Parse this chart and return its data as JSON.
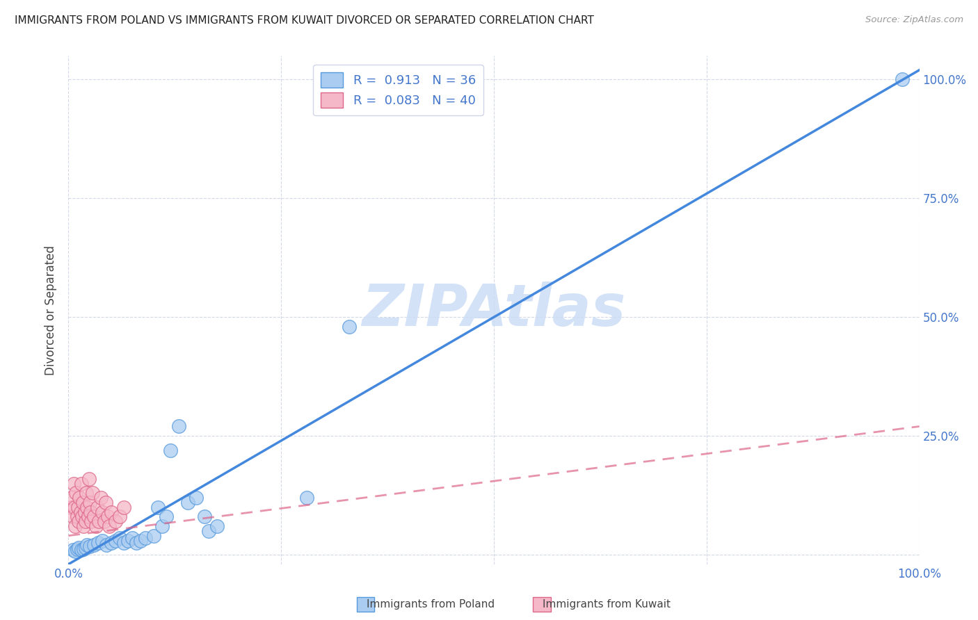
{
  "title": "IMMIGRANTS FROM POLAND VS IMMIGRANTS FROM KUWAIT DIVORCED OR SEPARATED CORRELATION CHART",
  "source": "Source: ZipAtlas.com",
  "ylabel": "Divorced or Separated",
  "right_ytick_labels": [
    "25.0%",
    "50.0%",
    "75.0%",
    "100.0%"
  ],
  "right_ytick_vals": [
    0.25,
    0.5,
    0.75,
    1.0
  ],
  "xlim": [
    0.0,
    1.0
  ],
  "ylim": [
    -0.02,
    1.05
  ],
  "poland_R": "0.913",
  "poland_N": "36",
  "kuwait_R": "0.083",
  "kuwait_N": "40",
  "poland_color": "#aaccf0",
  "poland_edge_color": "#5599dd",
  "poland_line_color": "#4488dd",
  "kuwait_color": "#f5b8c8",
  "kuwait_edge_color": "#dd6688",
  "kuwait_line_color": "#dd6688",
  "legend_label_poland": "Immigrants from Poland",
  "legend_label_kuwait": "Immigrants from Kuwait",
  "watermark_text": "ZIPAtlas",
  "watermark_color": "#ccddf5",
  "background_color": "#ffffff",
  "grid_color": "#d0d5e8",
  "title_color": "#222222",
  "source_color": "#999999",
  "tick_color": "#4477cc",
  "label_color": "#444444",
  "poland_line_y0": -0.02,
  "poland_line_y1": 1.02,
  "kuwait_line_y0": 0.04,
  "kuwait_line_y1": 0.27,
  "poland_scatter_x": [
    0.005,
    0.008,
    0.01,
    0.012,
    0.015,
    0.018,
    0.02,
    0.022,
    0.025,
    0.03,
    0.035,
    0.04,
    0.045,
    0.05,
    0.055,
    0.06,
    0.065,
    0.07,
    0.075,
    0.08,
    0.085,
    0.09,
    0.1,
    0.105,
    0.11,
    0.115,
    0.12,
    0.13,
    0.14,
    0.15,
    0.16,
    0.165,
    0.175,
    0.28,
    0.98,
    0.33
  ],
  "poland_scatter_y": [
    0.01,
    0.008,
    0.012,
    0.015,
    0.01,
    0.012,
    0.015,
    0.02,
    0.018,
    0.02,
    0.025,
    0.03,
    0.02,
    0.025,
    0.03,
    0.035,
    0.025,
    0.03,
    0.035,
    0.025,
    0.03,
    0.035,
    0.04,
    0.1,
    0.06,
    0.08,
    0.22,
    0.27,
    0.11,
    0.12,
    0.08,
    0.05,
    0.06,
    0.12,
    1.0,
    0.48
  ],
  "kuwait_scatter_x": [
    0.003,
    0.004,
    0.005,
    0.006,
    0.007,
    0.008,
    0.009,
    0.01,
    0.011,
    0.012,
    0.013,
    0.014,
    0.015,
    0.016,
    0.017,
    0.018,
    0.019,
    0.02,
    0.021,
    0.022,
    0.023,
    0.024,
    0.025,
    0.026,
    0.027,
    0.028,
    0.03,
    0.032,
    0.034,
    0.036,
    0.038,
    0.04,
    0.042,
    0.044,
    0.046,
    0.048,
    0.05,
    0.055,
    0.06,
    0.065
  ],
  "kuwait_scatter_y": [
    0.1,
    0.12,
    0.08,
    0.15,
    0.1,
    0.06,
    0.13,
    0.08,
    0.1,
    0.07,
    0.12,
    0.09,
    0.15,
    0.08,
    0.11,
    0.06,
    0.09,
    0.07,
    0.13,
    0.1,
    0.08,
    0.16,
    0.11,
    0.09,
    0.07,
    0.13,
    0.08,
    0.06,
    0.1,
    0.07,
    0.12,
    0.09,
    0.07,
    0.11,
    0.08,
    0.06,
    0.09,
    0.07,
    0.08,
    0.1
  ]
}
